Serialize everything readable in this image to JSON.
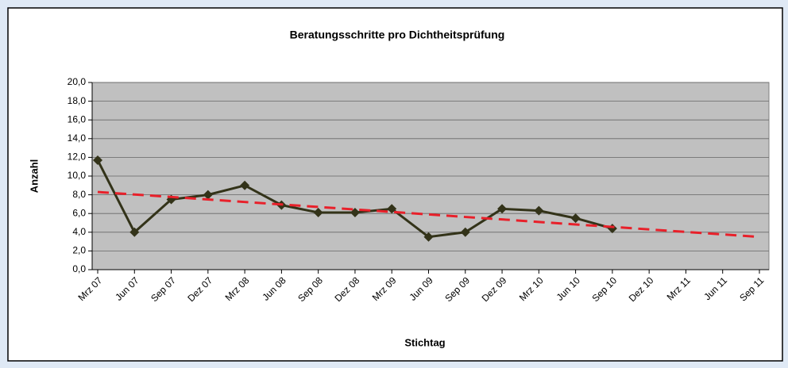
{
  "chart_data": {
    "type": "line",
    "title": "Beratungsschritte pro Dichtheitsprüfung",
    "x_label": "Stichtag",
    "y_label": "Anzahl",
    "categories": [
      "Mrz 07",
      "Jun 07",
      "Sep 07",
      "Dez 07",
      "Mrz 08",
      "Jun 08",
      "Sep 08",
      "Dez 08",
      "Mrz 09",
      "Jun 09",
      "Sep 09",
      "Dez 09",
      "Mrz 10",
      "Jun 10",
      "Sep 10",
      "Dez 10",
      "Mrz 11",
      "Jun 11",
      "Sep 11"
    ],
    "series": [
      {
        "color": "#333319",
        "marker": "diamond",
        "values": [
          11.7,
          4.0,
          7.5,
          8.0,
          9.0,
          6.9,
          6.1,
          6.1,
          6.5,
          3.5,
          4.0,
          6.5,
          6.3,
          5.5,
          4.4,
          null,
          null,
          null,
          null
        ]
      },
      {
        "color": "#e8202a",
        "dashed": true,
        "values": [
          8.3,
          8.03,
          7.77,
          7.5,
          7.23,
          6.97,
          6.7,
          6.43,
          6.17,
          5.9,
          5.63,
          5.37,
          5.1,
          4.83,
          4.57,
          4.3,
          4.03,
          3.77,
          3.5
        ]
      }
    ],
    "ylim": [
      0,
      20
    ],
    "yticks": [
      {
        "value": 0,
        "label": "0,0"
      },
      {
        "value": 2,
        "label": "2,0"
      },
      {
        "value": 4,
        "label": "4,0"
      },
      {
        "value": 6,
        "label": "6,0"
      },
      {
        "value": 8,
        "label": "8,0"
      },
      {
        "value": 10,
        "label": "10,0"
      },
      {
        "value": 12,
        "label": "12,0"
      },
      {
        "value": 14,
        "label": "14,0"
      },
      {
        "value": 16,
        "label": "16,0"
      },
      {
        "value": 18,
        "label": "18,0"
      },
      {
        "value": 20,
        "label": "20,0"
      }
    ],
    "grid": true
  }
}
